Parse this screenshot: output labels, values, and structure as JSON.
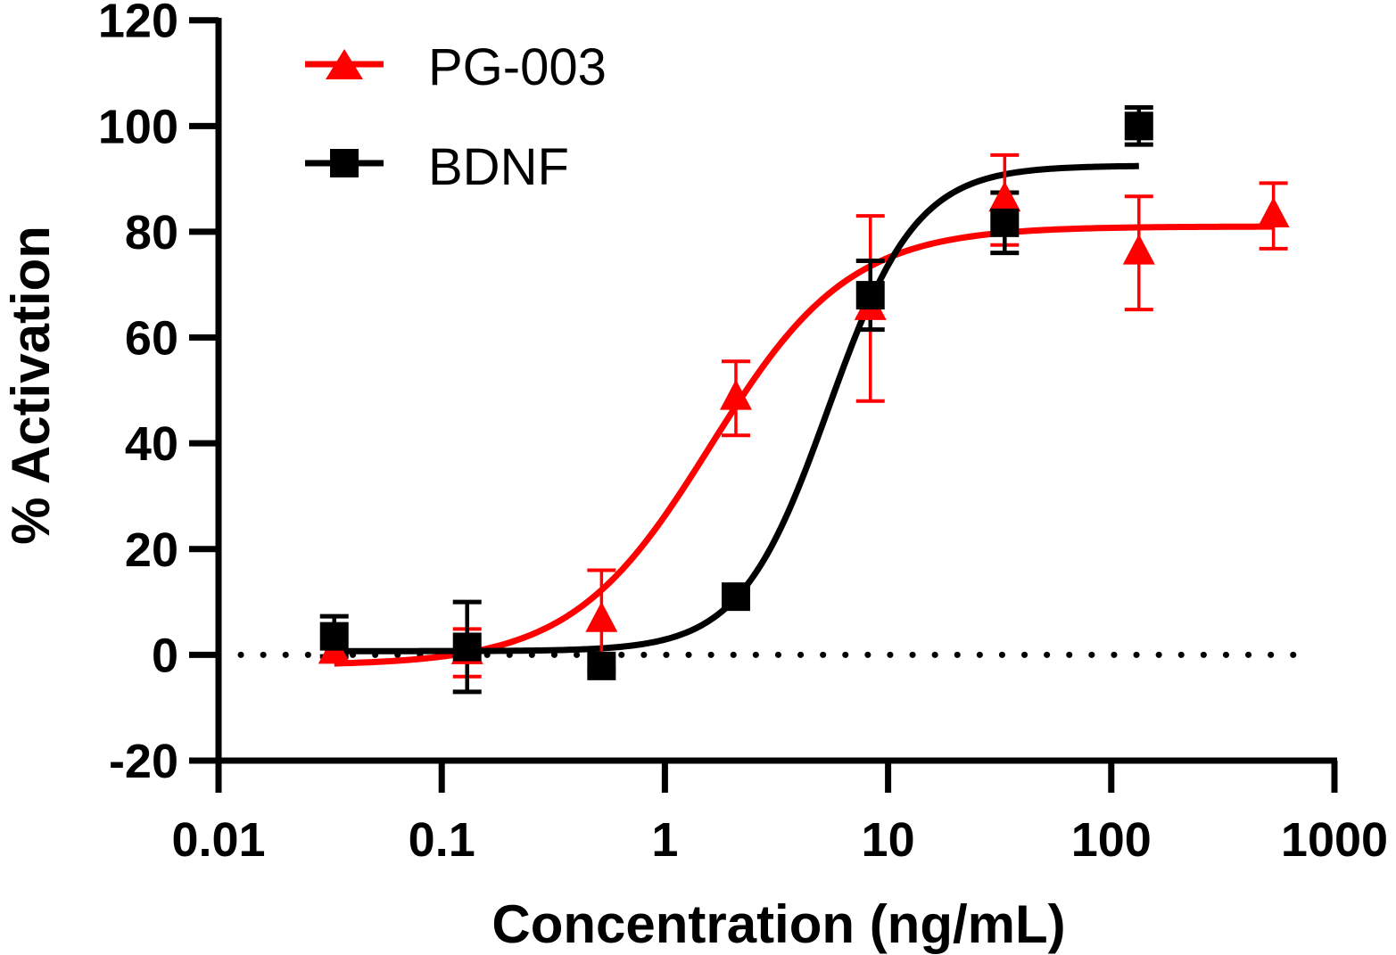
{
  "chart_data": {
    "type": "scatter",
    "title": "",
    "xlabel": "Concentration (ng/mL)",
    "ylabel": "% Activation",
    "xscale": "log",
    "xlim": [
      0.01,
      1000
    ],
    "ylim": [
      -20,
      120
    ],
    "xticks": [
      0.01,
      0.1,
      1,
      10,
      100,
      1000
    ],
    "xtick_labels": [
      "0.01",
      "0.1",
      "1",
      "10",
      "100",
      "1000"
    ],
    "yticks": [
      -20,
      0,
      20,
      40,
      60,
      80,
      100,
      120
    ],
    "ytick_labels": [
      "-20",
      "0",
      "20",
      "40",
      "60",
      "80",
      "100",
      "120"
    ],
    "grid": false,
    "reference_line": {
      "y": 0,
      "style": "dotted",
      "color": "#000000"
    },
    "legend": {
      "placement": "top-left"
    },
    "series": [
      {
        "name": "PG-003",
        "color": "#ff0000",
        "marker": "triangle",
        "x": [
          0.033,
          0.13,
          0.52,
          2.08,
          8.33,
          33.3,
          133,
          533
        ],
        "y": [
          0.5,
          0.4,
          6.5,
          48.5,
          65.5,
          86,
          76,
          83
        ],
        "error": [
          0,
          4.5,
          9.5,
          7,
          17.5,
          8.5,
          10.7,
          6.2
        ],
        "fit": {
          "model": "4PL",
          "bottom": -2,
          "top": 81,
          "ec50": 1.6,
          "hill": 1.4,
          "x_range": [
            0.033,
            533
          ]
        }
      },
      {
        "name": "BDNF",
        "color": "#000000",
        "marker": "square",
        "x": [
          0.033,
          0.13,
          0.52,
          2.08,
          8.33,
          33.3,
          133
        ],
        "y": [
          3.5,
          1.5,
          -2.1,
          11,
          68,
          81.7,
          100
        ],
        "error": [
          3.8,
          8.5,
          0,
          0,
          6.5,
          5.7,
          3.5
        ],
        "fit": {
          "model": "4PL",
          "bottom": 0.7,
          "top": 92.5,
          "ec50": 5.4,
          "hill": 2.2,
          "x_range": [
            0.033,
            133
          ]
        }
      }
    ]
  }
}
